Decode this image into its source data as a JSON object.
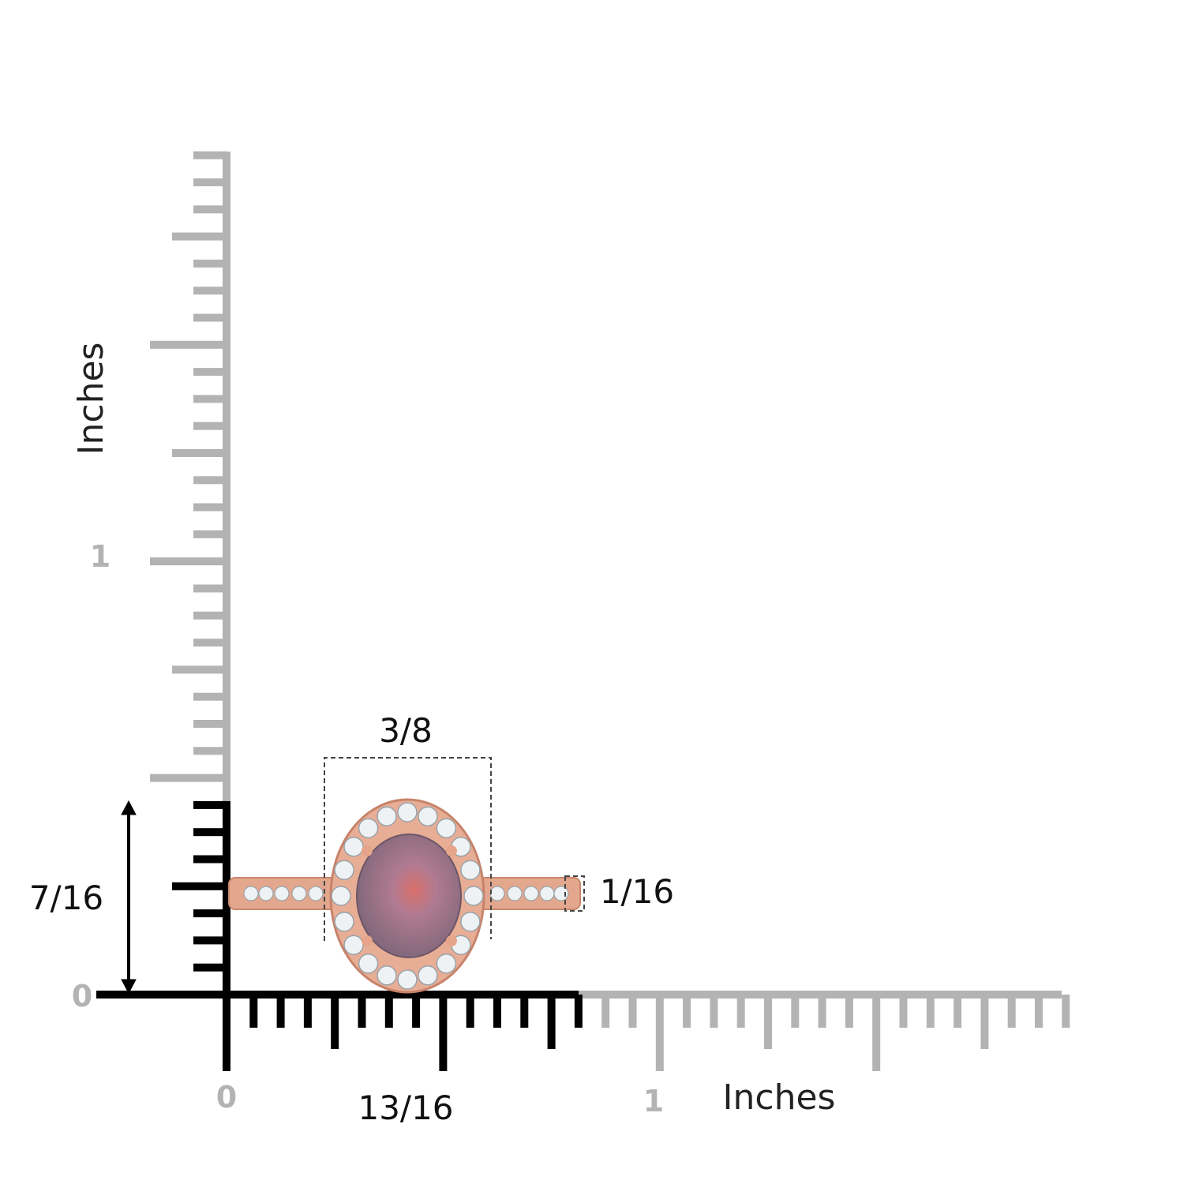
{
  "axis_y": {
    "title": "Inches",
    "labels": [
      "1",
      "0"
    ]
  },
  "axis_x": {
    "title": "Inches",
    "labels": [
      "0",
      "1"
    ]
  },
  "dimensions": {
    "height": "7/16",
    "width": "3/8",
    "band": "1/16",
    "length": "13/16"
  }
}
